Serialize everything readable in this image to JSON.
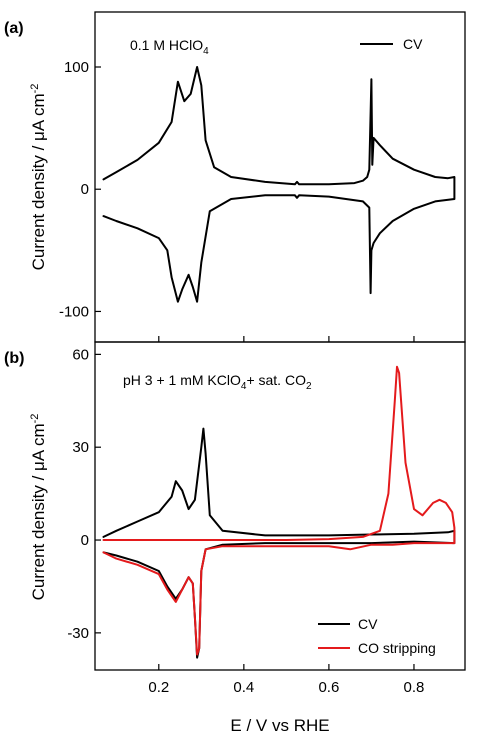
{
  "chart_data": [
    {
      "panel_label": "(a)",
      "type": "line",
      "annotation": {
        "text": "0.1 M HClO",
        "sub": "4"
      },
      "ylabel": "Current density / μA cm",
      "ylabel_sup": "-2",
      "xlim": [
        0.05,
        0.92
      ],
      "ylim": [
        -125,
        145
      ],
      "yticks": [
        100,
        0,
        -100
      ],
      "ytick_labels": [
        "100",
        "0",
        "-100"
      ],
      "xticks": [
        0.2,
        0.4,
        0.6,
        0.8
      ],
      "legend": "top-right",
      "series": [
        {
          "name": "CV",
          "color": "#000000",
          "anodic": [
            [
              0.07,
              8
            ],
            [
              0.1,
              14
            ],
            [
              0.15,
              24
            ],
            [
              0.2,
              38
            ],
            [
              0.23,
              55
            ],
            [
              0.245,
              88
            ],
            [
              0.26,
              72
            ],
            [
              0.275,
              78
            ],
            [
              0.29,
              100
            ],
            [
              0.3,
              85
            ],
            [
              0.31,
              40
            ],
            [
              0.33,
              18
            ],
            [
              0.37,
              10
            ],
            [
              0.45,
              6
            ],
            [
              0.52,
              4
            ],
            [
              0.525,
              6
            ],
            [
              0.53,
              4
            ],
            [
              0.6,
              4
            ],
            [
              0.66,
              5
            ],
            [
              0.68,
              7
            ],
            [
              0.69,
              10
            ],
            [
              0.695,
              16
            ],
            [
              0.7,
              90
            ],
            [
              0.702,
              20
            ],
            [
              0.705,
              42
            ],
            [
              0.72,
              36
            ],
            [
              0.75,
              25
            ],
            [
              0.8,
              16
            ],
            [
              0.85,
              10
            ],
            [
              0.88,
              9
            ],
            [
              0.895,
              10
            ]
          ],
          "cathodic": [
            [
              0.895,
              10
            ],
            [
              0.895,
              -8
            ],
            [
              0.85,
              -10
            ],
            [
              0.8,
              -16
            ],
            [
              0.75,
              -26
            ],
            [
              0.72,
              -36
            ],
            [
              0.705,
              -44
            ],
            [
              0.7,
              -50
            ],
            [
              0.698,
              -85
            ],
            [
              0.695,
              -15
            ],
            [
              0.68,
              -10
            ],
            [
              0.6,
              -6
            ],
            [
              0.53,
              -5
            ],
            [
              0.525,
              -7
            ],
            [
              0.52,
              -5
            ],
            [
              0.45,
              -5
            ],
            [
              0.37,
              -8
            ],
            [
              0.32,
              -18
            ],
            [
              0.3,
              -60
            ],
            [
              0.29,
              -92
            ],
            [
              0.28,
              -80
            ],
            [
              0.27,
              -70
            ],
            [
              0.255,
              -82
            ],
            [
              0.245,
              -92
            ],
            [
              0.23,
              -72
            ],
            [
              0.22,
              -50
            ],
            [
              0.2,
              -40
            ],
            [
              0.15,
              -32
            ],
            [
              0.1,
              -26
            ],
            [
              0.07,
              -22
            ]
          ]
        }
      ]
    },
    {
      "panel_label": "(b)",
      "type": "line",
      "annotation": {
        "text": "pH 3 + 1 mM KClO",
        "sub": "4",
        "text2": "+ sat. CO",
        "sub2": "2"
      },
      "ylabel": "Current density / μA cm",
      "ylabel_sup": "-2",
      "xlabel": "E / V vs RHE",
      "xlim": [
        0.05,
        0.92
      ],
      "ylim": [
        -42,
        64
      ],
      "yticks": [
        60,
        30,
        0,
        -30
      ],
      "ytick_labels": [
        "60",
        "30",
        "0",
        "-30"
      ],
      "xticks": [
        0.2,
        0.4,
        0.6,
        0.8
      ],
      "xtick_labels": [
        "0.2",
        "0.4",
        "0.6",
        "0.8"
      ],
      "legend": "bottom-right",
      "series": [
        {
          "name": "CV",
          "color": "#000000",
          "anodic": [
            [
              0.07,
              1
            ],
            [
              0.1,
              3
            ],
            [
              0.15,
              6
            ],
            [
              0.2,
              9
            ],
            [
              0.23,
              14
            ],
            [
              0.24,
              19
            ],
            [
              0.255,
              16
            ],
            [
              0.27,
              10
            ],
            [
              0.285,
              13
            ],
            [
              0.3,
              30
            ],
            [
              0.305,
              36
            ],
            [
              0.31,
              28
            ],
            [
              0.32,
              8
            ],
            [
              0.35,
              3
            ],
            [
              0.45,
              1.5
            ],
            [
              0.6,
              1.5
            ],
            [
              0.7,
              1.8
            ],
            [
              0.8,
              2
            ],
            [
              0.88,
              2.5
            ],
            [
              0.895,
              3
            ]
          ],
          "cathodic": [
            [
              0.895,
              3
            ],
            [
              0.895,
              -1
            ],
            [
              0.8,
              -0.5
            ],
            [
              0.7,
              -1
            ],
            [
              0.6,
              -1
            ],
            [
              0.45,
              -1
            ],
            [
              0.35,
              -1.5
            ],
            [
              0.31,
              -3
            ],
            [
              0.3,
              -10
            ],
            [
              0.295,
              -35
            ],
            [
              0.29,
              -38
            ],
            [
              0.285,
              -25
            ],
            [
              0.28,
              -14
            ],
            [
              0.27,
              -12
            ],
            [
              0.255,
              -16
            ],
            [
              0.24,
              -19
            ],
            [
              0.22,
              -15
            ],
            [
              0.2,
              -10
            ],
            [
              0.15,
              -7
            ],
            [
              0.1,
              -5
            ],
            [
              0.07,
              -4
            ]
          ]
        },
        {
          "name": "CO stripping",
          "color": "#e41a1c",
          "anodic": [
            [
              0.07,
              0
            ],
            [
              0.3,
              0
            ],
            [
              0.5,
              0
            ],
            [
              0.6,
              0.3
            ],
            [
              0.68,
              1
            ],
            [
              0.72,
              3
            ],
            [
              0.74,
              15
            ],
            [
              0.755,
              45
            ],
            [
              0.76,
              56
            ],
            [
              0.765,
              54
            ],
            [
              0.78,
              25
            ],
            [
              0.8,
              10
            ],
            [
              0.82,
              8
            ],
            [
              0.845,
              12
            ],
            [
              0.86,
              13
            ],
            [
              0.875,
              12
            ],
            [
              0.89,
              9
            ],
            [
              0.895,
              4
            ]
          ],
          "cathodic": [
            [
              0.895,
              4
            ],
            [
              0.895,
              -1
            ],
            [
              0.85,
              -1
            ],
            [
              0.8,
              -1
            ],
            [
              0.75,
              -1.5
            ],
            [
              0.7,
              -1.5
            ],
            [
              0.65,
              -3
            ],
            [
              0.6,
              -2
            ],
            [
              0.45,
              -2
            ],
            [
              0.35,
              -2
            ],
            [
              0.31,
              -3
            ],
            [
              0.3,
              -10
            ],
            [
              0.295,
              -35
            ],
            [
              0.29,
              -37
            ],
            [
              0.285,
              -25
            ],
            [
              0.28,
              -14
            ],
            [
              0.27,
              -12
            ],
            [
              0.255,
              -16
            ],
            [
              0.24,
              -20
            ],
            [
              0.22,
              -16
            ],
            [
              0.2,
              -11
            ],
            [
              0.15,
              -8
            ],
            [
              0.1,
              -6
            ],
            [
              0.07,
              -4
            ]
          ]
        }
      ]
    }
  ]
}
